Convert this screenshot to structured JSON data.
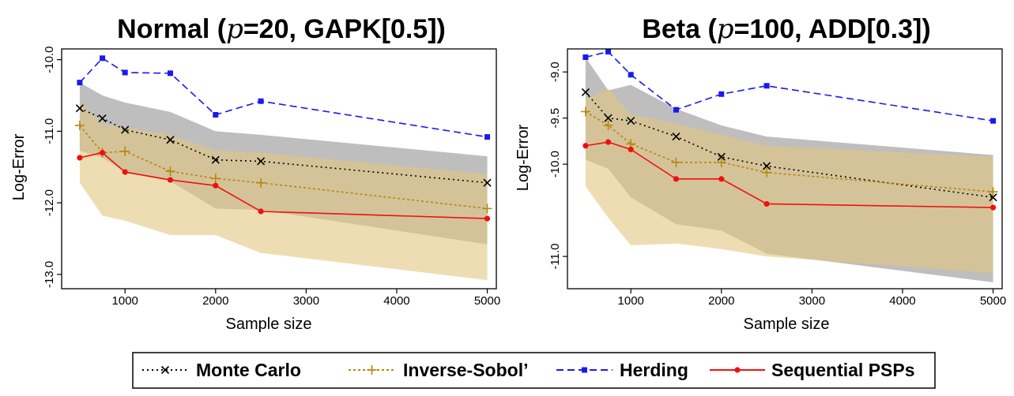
{
  "colors": {
    "monte_carlo": "#000000",
    "inverse_sobol": "#b8860b",
    "herding": "#1a1aee",
    "sequential_psps": "#ee1111",
    "band_grey": "#a8a8a8",
    "band_tan": "#e3c77e"
  },
  "legend": {
    "items": [
      {
        "key": "monte_carlo",
        "label": "Monte Carlo",
        "marker": "x-icon"
      },
      {
        "key": "inverse_sobol",
        "label": "Inverse-Sobol’",
        "marker": "plus-icon"
      },
      {
        "key": "herding",
        "label": "Herding",
        "marker": "square-icon"
      },
      {
        "key": "sequential_psps",
        "label": "Sequential PSPs",
        "marker": "circle-icon"
      }
    ]
  },
  "chart_data": [
    {
      "type": "line",
      "title": {
        "dist": "Normal",
        "param": "20",
        "method": "GAPK[0.5]"
      },
      "xlabel": "Sample size",
      "ylabel": "Log-Error",
      "xlim": [
        300,
        5100
      ],
      "ylim": [
        -13.2,
        -9.85
      ],
      "xticks": [
        1000,
        2000,
        3000,
        4000,
        5000
      ],
      "xtick_labels": [
        "1000",
        "2000",
        "3000",
        "4000",
        "5000"
      ],
      "yticks": [
        -10.0,
        -11.0,
        -12.0,
        -13.0
      ],
      "ytick_labels": [
        "-10.0",
        "-11.0",
        "-12.0",
        "-13.0"
      ],
      "series": [
        {
          "name": "Monte Carlo",
          "key": "monte_carlo",
          "x": [
            500,
            750,
            1000,
            1500,
            2000,
            2500,
            5000
          ],
          "y": [
            -10.68,
            -10.82,
            -10.98,
            -11.12,
            -11.4,
            -11.42,
            -11.72
          ]
        },
        {
          "name": "Inverse-Sobol’",
          "key": "inverse_sobol",
          "x": [
            500,
            750,
            1000,
            1500,
            2000,
            2500,
            5000
          ],
          "y": [
            -10.92,
            -11.3,
            -11.28,
            -11.56,
            -11.66,
            -11.72,
            -12.08
          ]
        },
        {
          "name": "Herding",
          "key": "herding",
          "x": [
            500,
            750,
            1000,
            1500,
            2000,
            2500,
            5000
          ],
          "y": [
            -10.32,
            -9.98,
            -10.18,
            -10.19,
            -10.77,
            -10.58,
            -11.08
          ]
        },
        {
          "name": "Sequential PSPs",
          "key": "sequential_psps",
          "x": [
            500,
            750,
            1000,
            1500,
            2000,
            2500,
            5000
          ],
          "y": [
            -11.37,
            -11.3,
            -11.57,
            -11.68,
            -11.76,
            -12.12,
            -12.22
          ]
        }
      ],
      "bands": [
        {
          "key": "band_grey",
          "x": [
            500,
            750,
            1000,
            1500,
            2000,
            2500,
            5000
          ],
          "upper": [
            -10.32,
            -10.5,
            -10.6,
            -10.73,
            -11.0,
            -11.05,
            -11.35
          ],
          "lower": [
            -11.27,
            -11.37,
            -11.57,
            -11.7,
            -12.08,
            -12.1,
            -12.58
          ]
        },
        {
          "key": "band_tan",
          "x": [
            500,
            750,
            1000,
            1500,
            2000,
            2500,
            5000
          ],
          "upper": [
            -10.6,
            -10.9,
            -10.95,
            -11.05,
            -11.27,
            -11.3,
            -11.6
          ],
          "lower": [
            -11.72,
            -12.18,
            -12.25,
            -12.45,
            -12.45,
            -12.7,
            -13.08
          ]
        }
      ]
    },
    {
      "type": "line",
      "title": {
        "dist": "Beta",
        "param": "100",
        "method": "ADD[0.3]"
      },
      "xlabel": "Sample size",
      "ylabel": "Log-Error",
      "xlim": [
        300,
        5100
      ],
      "ylim": [
        -11.35,
        -8.75
      ],
      "xticks": [
        1000,
        2000,
        3000,
        4000,
        5000
      ],
      "xtick_labels": [
        "1000",
        "2000",
        "3000",
        "4000",
        "5000"
      ],
      "yticks": [
        -9.0,
        -9.5,
        -10.0,
        -11.0
      ],
      "ytick_labels": [
        "-9.0",
        "-9.5",
        "-10.0",
        "-11.0"
      ],
      "series": [
        {
          "name": "Monte Carlo",
          "key": "monte_carlo",
          "x": [
            500,
            750,
            1000,
            1500,
            2000,
            2500,
            5000
          ],
          "y": [
            -9.22,
            -9.5,
            -9.53,
            -9.7,
            -9.92,
            -10.02,
            -10.36
          ]
        },
        {
          "name": "Inverse-Sobol’",
          "key": "inverse_sobol",
          "x": [
            500,
            750,
            1000,
            1500,
            2000,
            2500,
            5000
          ],
          "y": [
            -9.43,
            -9.58,
            -9.78,
            -9.98,
            -9.98,
            -10.09,
            -10.3
          ]
        },
        {
          "name": "Herding",
          "key": "herding",
          "x": [
            500,
            750,
            1000,
            1500,
            2000,
            2500,
            5000
          ],
          "y": [
            -8.84,
            -8.78,
            -9.03,
            -9.41,
            -9.24,
            -9.15,
            -9.53
          ]
        },
        {
          "name": "Sequential PSPs",
          "key": "sequential_psps",
          "x": [
            500,
            750,
            1000,
            1500,
            2000,
            2500,
            5000
          ],
          "y": [
            -9.8,
            -9.76,
            -9.84,
            -10.16,
            -10.16,
            -10.43,
            -10.47
          ]
        }
      ],
      "bands": [
        {
          "key": "band_grey",
          "x": [
            500,
            750,
            1000,
            1500,
            2000,
            2500,
            5000
          ],
          "upper": [
            -8.84,
            -9.2,
            -9.14,
            -9.4,
            -9.58,
            -9.7,
            -9.9
          ],
          "lower": [
            -9.95,
            -10.05,
            -10.36,
            -10.65,
            -10.72,
            -10.97,
            -11.28
          ]
        },
        {
          "key": "band_tan",
          "x": [
            500,
            750,
            1000,
            1500,
            2000,
            2500,
            5000
          ],
          "upper": [
            -9.3,
            -9.18,
            -9.46,
            -9.56,
            -9.68,
            -9.8,
            -9.92
          ],
          "lower": [
            -10.24,
            -10.58,
            -10.88,
            -10.86,
            -10.92,
            -11.0,
            -11.18
          ]
        }
      ]
    }
  ]
}
